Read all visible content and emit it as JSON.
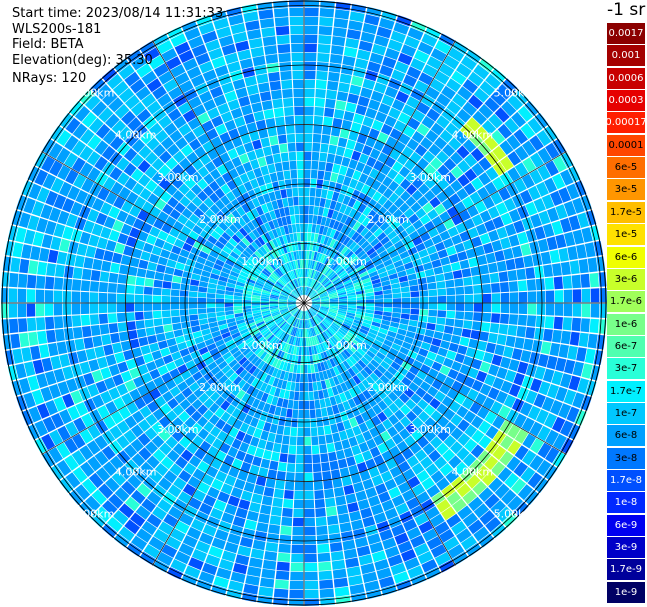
{
  "info": {
    "start_time": "Start time: 2023/08/14 11:31:33",
    "instrument": "WLS200s-181",
    "field": "Field: BETA",
    "elevation": "Elevation(deg): 35.30",
    "nrays": "NRays: 120"
  },
  "chart_data": {
    "type": "heatmap",
    "projection": "polar (PPI scan)",
    "field": "BETA",
    "n_rays": 120,
    "range_rings_km": [
      1.0,
      2.0,
      3.0,
      4.0,
      5.0
    ],
    "range_labels": [
      "1.00km",
      "2.00km",
      "3.00km",
      "4.00km",
      "5.00km"
    ],
    "dominant_value_band": "1e-7 to 1.7e-6",
    "colorbar": {
      "unit_label": "-1 sr",
      "labels": [
        "0.0017",
        "0.001",
        "0.0006",
        "0.0003",
        "0.00017",
        "0.0001",
        "6e-5",
        "3e-5",
        "1.7e-5",
        "1e-5",
        "6e-6",
        "3e-6",
        "1.7e-6",
        "1e-6",
        "6e-7",
        "3e-7",
        "1.7e-7",
        "1e-7",
        "6e-8",
        "3e-8",
        "1.7e-8",
        "1e-8",
        "6e-9",
        "3e-9",
        "1.7e-9",
        "1e-9"
      ],
      "colors": [
        "#8b0000",
        "#a40000",
        "#c80000",
        "#e60000",
        "#ff1e00",
        "#ff4600",
        "#ff6e00",
        "#ff9600",
        "#ffbe00",
        "#ffe100",
        "#f0ff00",
        "#c8ff2a",
        "#a0ff5a",
        "#78ff8a",
        "#50ffb0",
        "#28ffd8",
        "#00f0ff",
        "#00c8ff",
        "#00a0ff",
        "#0078ff",
        "#0050ff",
        "#0028ff",
        "#0000f0",
        "#0000c8",
        "#00009b",
        "#000064"
      ],
      "text_colors": [
        "#ffffff",
        "#ffffff",
        "#ffffff",
        "#ffffff",
        "#ffffff",
        "#000000",
        "#000000",
        "#000000",
        "#000000",
        "#000000",
        "#000000",
        "#000000",
        "#000000",
        "#000000",
        "#000000",
        "#000000",
        "#000000",
        "#000000",
        "#000000",
        "#000000",
        "#ffffff",
        "#ffffff",
        "#ffffff",
        "#ffffff",
        "#ffffff",
        "#ffffff"
      ]
    }
  }
}
